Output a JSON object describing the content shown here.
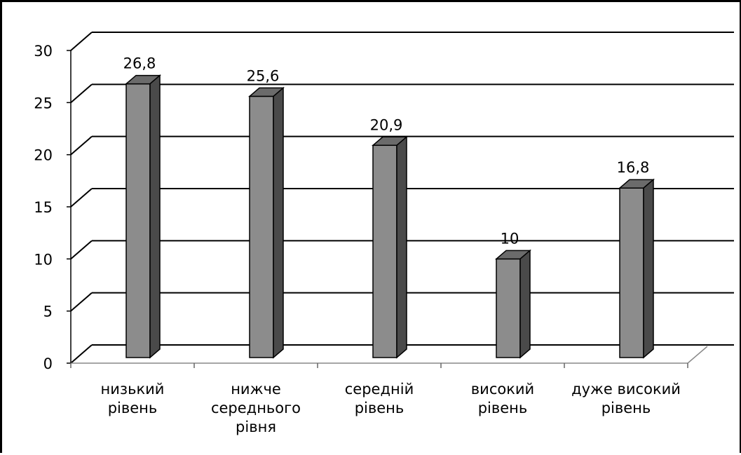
{
  "chart_data": {
    "type": "bar",
    "title": "",
    "xlabel": "",
    "ylabel": "",
    "categories": [
      [
        "низький",
        "рівень"
      ],
      [
        "нижче",
        "середнього",
        "рівня"
      ],
      [
        "середній",
        "рівень"
      ],
      [
        "високий",
        "рівень"
      ],
      [
        "дуже високий",
        "рівень"
      ]
    ],
    "values": [
      26.8,
      25.6,
      20.9,
      10,
      16.8
    ],
    "value_labels": [
      "26,8",
      "25,6",
      "20,9",
      "10",
      "16,8"
    ],
    "ylim": [
      0,
      30
    ],
    "yticks": [
      0,
      5,
      10,
      15,
      20,
      25,
      30
    ],
    "grid": true,
    "three_d": true,
    "colors": {
      "bar_front": "#8c8c8c",
      "bar_side": "#4a4a4a",
      "bar_top": "#6b6b6b",
      "axis": "#000000",
      "grid": "#000000"
    }
  }
}
